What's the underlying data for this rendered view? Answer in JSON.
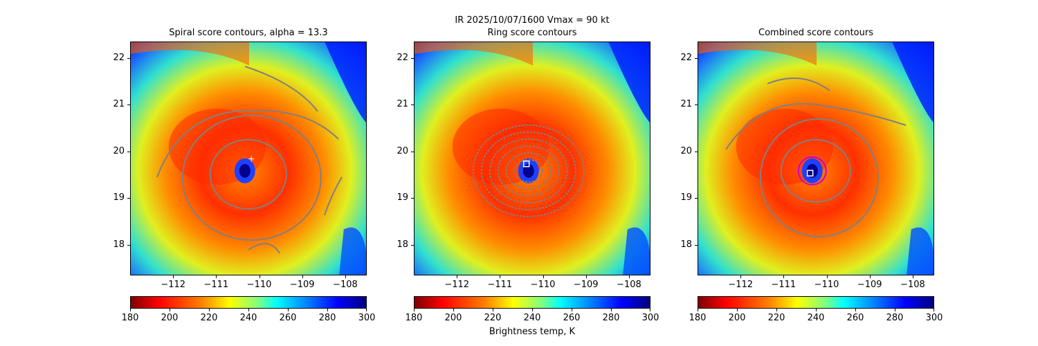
{
  "figure": {
    "suptitle": "IR  2025/10/07/1600    Vmax = 90 kt",
    "colorbar_label": "Brightness temp, K"
  },
  "chart_data": [
    {
      "type": "heatmap",
      "title": "Spiral score contours, alpha = 13.3",
      "xlim": [
        -113.0,
        -107.5
      ],
      "ylim": [
        17.35,
        22.35
      ],
      "xticks": [
        -112,
        -111,
        -110,
        -109,
        -108
      ],
      "yticks": [
        18,
        19,
        20,
        21,
        22
      ],
      "colormap": "jet",
      "clim": [
        180,
        300
      ],
      "colorbar_ticks": [
        180,
        200,
        220,
        240,
        260,
        280,
        300
      ],
      "contour_color": "#808080",
      "center_marker": {
        "symbol": "+",
        "x": -110.2,
        "y": 19.85,
        "color": "#ffffff"
      }
    },
    {
      "type": "heatmap",
      "title": "Ring score contours",
      "xlim": [
        -113.0,
        -107.5
      ],
      "ylim": [
        17.35,
        22.35
      ],
      "xticks": [
        -112,
        -111,
        -110,
        -109,
        -108
      ],
      "yticks": [
        18,
        19,
        20,
        21,
        22
      ],
      "colormap": "jet",
      "clim": [
        180,
        300
      ],
      "colorbar_ticks": [
        180,
        200,
        220,
        240,
        260,
        280,
        300
      ],
      "contour_color": "#808080",
      "center_marker": {
        "symbol": "square",
        "x": -110.4,
        "y": 19.75,
        "color": "#ffffff"
      }
    },
    {
      "type": "heatmap",
      "title": "Combined score contours",
      "xlim": [
        -113.0,
        -107.5
      ],
      "ylim": [
        17.35,
        22.35
      ],
      "xticks": [
        -112,
        -111,
        -110,
        -109,
        -108
      ],
      "yticks": [
        18,
        19,
        20,
        21,
        22
      ],
      "colormap": "jet",
      "clim": [
        180,
        300
      ],
      "colorbar_ticks": [
        180,
        200,
        220,
        240,
        260,
        280,
        300
      ],
      "contour_color": "#808080",
      "center_marker": {
        "symbol": "square",
        "x": -110.4,
        "y": 19.55,
        "color": "#ffffff"
      },
      "ring_color": "#cc00cc"
    }
  ]
}
